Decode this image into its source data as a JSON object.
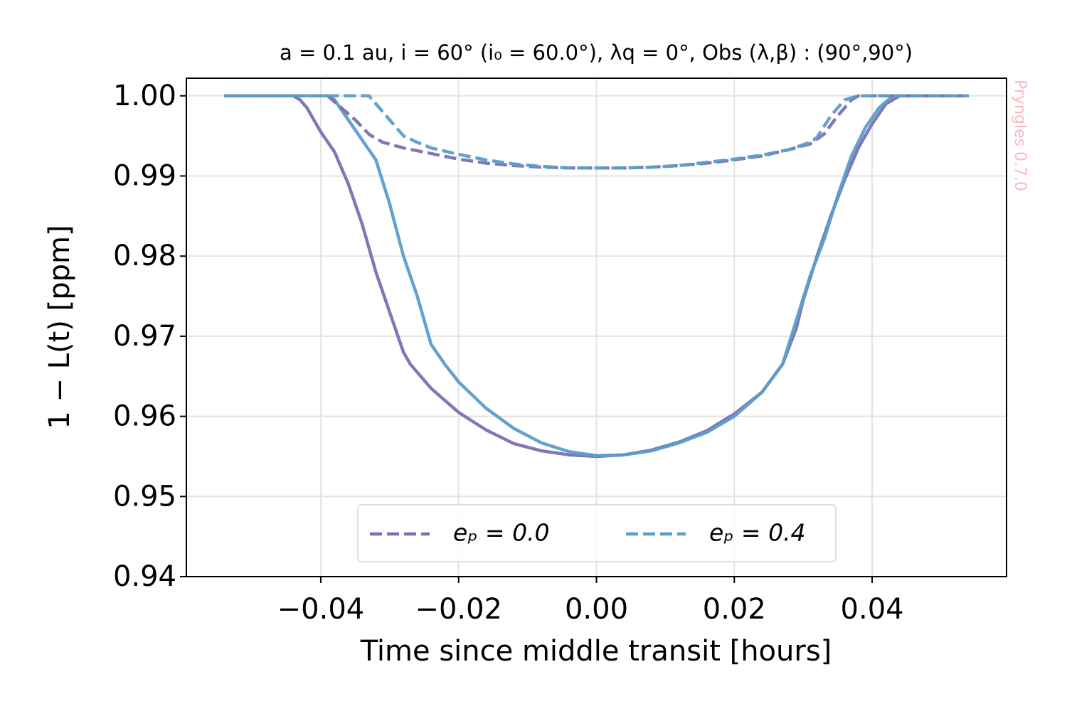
{
  "chart_data": {
    "type": "line",
    "title": "a = 0.1 au, i = 60° (i₀ = 60.0°), λq = 0°, Obs (λ,β) : (90°,90°)",
    "xlabel": "Time since middle transit [hours]",
    "ylabel": "1 − L(t) [ppm]",
    "watermark": "Pryngles 0.7.0",
    "xlim": [
      -0.0595,
      0.0595
    ],
    "ylim": [
      0.94,
      1.0022
    ],
    "xticks": [
      {
        "value": -0.04,
        "label": "−0.04"
      },
      {
        "value": -0.02,
        "label": "−0.02"
      },
      {
        "value": 0,
        "label": "0.00"
      },
      0.02,
      0.04
    ],
    "yticks": [
      {
        "value": 1,
        "label": "1.00"
      },
      0.99,
      0.98,
      0.97,
      0.96,
      0.95,
      0.94
    ],
    "grid": true,
    "legend": "lower center",
    "series": [
      {
        "color": "#7b6fb2",
        "dash": false,
        "x": [
          -0.054,
          -0.044,
          -0.043,
          -0.042,
          -0.04,
          -0.038,
          -0.036,
          -0.034,
          -0.032,
          -0.03,
          -0.028,
          -0.027,
          -0.024,
          -0.02,
          -0.016,
          -0.012,
          -0.008,
          -0.004,
          0.0,
          0.004,
          0.008,
          0.012,
          0.016,
          0.02,
          0.024,
          0.027,
          0.029,
          0.03,
          0.032,
          0.034,
          0.036,
          0.038,
          0.04,
          0.042,
          0.044,
          0.054
        ],
        "values": [
          1.0,
          1.0,
          0.9995,
          0.9985,
          0.9955,
          0.993,
          0.989,
          0.984,
          0.978,
          0.973,
          0.968,
          0.9665,
          0.9635,
          0.9605,
          0.9583,
          0.9566,
          0.9557,
          0.9552,
          0.955,
          0.9552,
          0.9558,
          0.9568,
          0.9582,
          0.9603,
          0.963,
          0.9665,
          0.971,
          0.9745,
          0.98,
          0.985,
          0.9895,
          0.9935,
          0.9965,
          0.999,
          1.0,
          1.0
        ]
      },
      {
        "color": "#5b9dca",
        "dash": false,
        "x": [
          -0.054,
          -0.039,
          -0.038,
          -0.036,
          -0.034,
          -0.032,
          -0.03,
          -0.028,
          -0.026,
          -0.024,
          -0.022,
          -0.02,
          -0.016,
          -0.012,
          -0.008,
          -0.004,
          0.0,
          0.004,
          0.008,
          0.012,
          0.016,
          0.02,
          0.024,
          0.027,
          0.029,
          0.031,
          0.033,
          0.035,
          0.037,
          0.039,
          0.041,
          0.043,
          0.054
        ],
        "values": [
          1.0,
          1.0,
          0.9995,
          0.997,
          0.9945,
          0.992,
          0.9865,
          0.98,
          0.975,
          0.969,
          0.9665,
          0.9643,
          0.961,
          0.9585,
          0.9567,
          0.9556,
          0.9551,
          0.9552,
          0.9557,
          0.9567,
          0.958,
          0.96,
          0.963,
          0.9665,
          0.972,
          0.9775,
          0.982,
          0.9875,
          0.9925,
          0.996,
          0.9985,
          1.0,
          1.0
        ]
      },
      {
        "name": "eₚ = 0.0",
        "color": "#7b6fb2",
        "dash": true,
        "x": [
          -0.054,
          -0.039,
          -0.037,
          -0.035,
          -0.033,
          -0.031,
          -0.028,
          -0.024,
          -0.02,
          -0.016,
          -0.012,
          -0.008,
          -0.004,
          0,
          0.004,
          0.008,
          0.012,
          0.016,
          0.02,
          0.024,
          0.028,
          0.031,
          0.033,
          0.035,
          0.037,
          0.038,
          0.054
        ],
        "values": [
          1.0,
          1.0,
          0.9985,
          0.997,
          0.9952,
          0.9942,
          0.9935,
          0.9928,
          0.9921,
          0.9916,
          0.9913,
          0.9911,
          0.991,
          0.991,
          0.991,
          0.9911,
          0.9913,
          0.9916,
          0.992,
          0.9925,
          0.9933,
          0.994,
          0.9952,
          0.9975,
          0.9995,
          1.0,
          1.0
        ]
      },
      {
        "name": "eₚ = 0.4",
        "color": "#5b9dca",
        "dash": true,
        "x": [
          -0.054,
          -0.033,
          -0.032,
          -0.03,
          -0.028,
          -0.026,
          -0.024,
          -0.02,
          -0.016,
          -0.012,
          -0.008,
          -0.004,
          0,
          0.004,
          0.008,
          0.012,
          0.016,
          0.02,
          0.024,
          0.028,
          0.031,
          0.032,
          0.034,
          0.036,
          0.038,
          0.054
        ],
        "values": [
          1.0,
          1.0,
          0.999,
          0.997,
          0.995,
          0.9942,
          0.9935,
          0.9927,
          0.992,
          0.9915,
          0.9912,
          0.991,
          0.991,
          0.991,
          0.9911,
          0.9913,
          0.9917,
          0.9921,
          0.9926,
          0.9933,
          0.9942,
          0.9948,
          0.9975,
          0.9995,
          1.0,
          1.0
        ]
      }
    ]
  }
}
